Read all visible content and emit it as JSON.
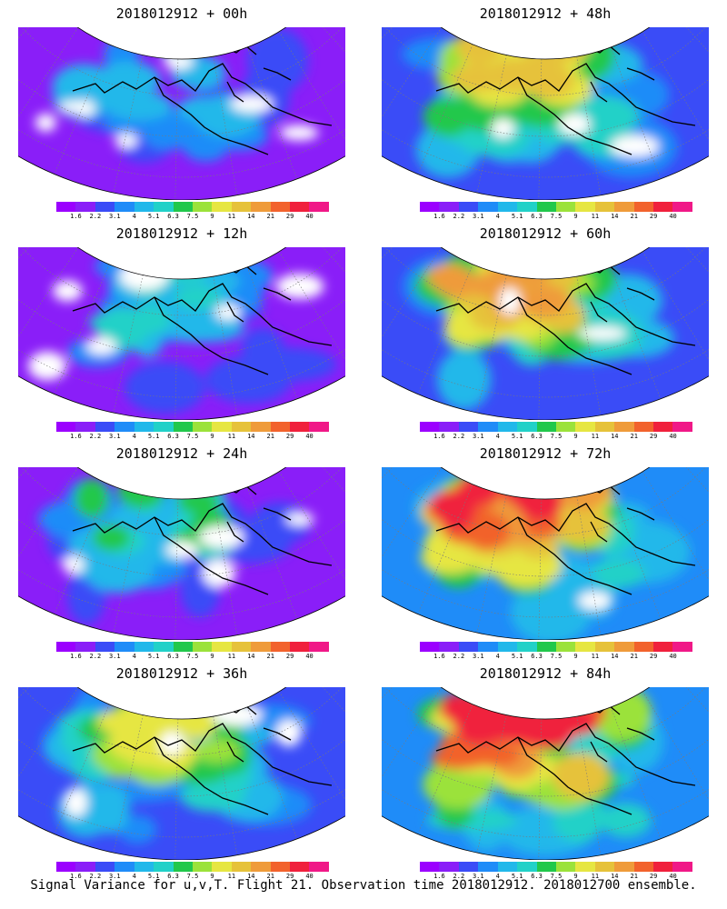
{
  "caption": "Signal Variance for u,v,T. Flight 21. Observation time 2018012912. 2018012700 ensemble.",
  "colorbar": {
    "labels": [
      "1.6",
      "2.2",
      "3.1",
      "4",
      "5.1",
      "6.3",
      "7.5",
      "9",
      "11",
      "14",
      "21",
      "29",
      "40"
    ],
    "colors": [
      "#9b00ff",
      "#8a1ef8",
      "#3a4cf7",
      "#1f8cf8",
      "#21b8ea",
      "#21d1c8",
      "#21c84b",
      "#9be23a",
      "#e6e642",
      "#e6c23a",
      "#ef9b3a",
      "#f2622c",
      "#f0203c",
      "#f01887"
    ]
  },
  "panels": [
    {
      "title": "2018012912 + 00h",
      "level": 0
    },
    {
      "title": "2018012912 + 48h",
      "level": 4
    },
    {
      "title": "2018012912 + 12h",
      "level": 1
    },
    {
      "title": "2018012912 + 60h",
      "level": 5
    },
    {
      "title": "2018012912 + 24h",
      "level": 2
    },
    {
      "title": "2018012912 + 72h",
      "level": 6
    },
    {
      "title": "2018012912 + 36h",
      "level": 3
    },
    {
      "title": "2018012912 + 84h",
      "level": 7
    }
  ]
}
